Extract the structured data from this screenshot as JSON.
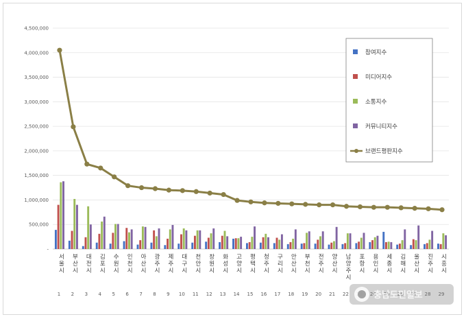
{
  "chart_data": {
    "type": "bar",
    "ylim": [
      0,
      4500000
    ],
    "yticks": [
      "-",
      "500,000",
      "1,000,000",
      "1,500,000",
      "2,000,000",
      "2,500,000",
      "3,000,000",
      "3,500,000",
      "4,000,000",
      "4,500,000"
    ],
    "ytick_values": [
      0,
      500000,
      1000000,
      1500000,
      2000000,
      2500000,
      3000000,
      3500000,
      4000000,
      4500000
    ],
    "categories": [
      "서울시",
      "부산시",
      "대전시",
      "김포시",
      "수원시",
      "인천시",
      "아산시",
      "광주시",
      "제주시",
      "대구시",
      "천안시",
      "창원시",
      "화성시",
      "고양시",
      "평택시",
      "청주시",
      "구리시",
      "안산시",
      "부천시",
      "전주시",
      "양산시",
      "남양주시",
      "포항시",
      "용인시",
      "세종시",
      "김해시",
      "울산시",
      "진주시",
      "시흥시"
    ],
    "ranks": [
      "1",
      "2",
      "3",
      "4",
      "5",
      "6",
      "7",
      "8",
      "9",
      "10",
      "11",
      "12",
      "13",
      "14",
      "15",
      "16",
      "17",
      "18",
      "19",
      "20",
      "21",
      "22",
      "23",
      "24",
      "25",
      "26",
      "27",
      "28",
      "29"
    ],
    "series": [
      {
        "name": "참여지수",
        "color": "#4472c4",
        "type": "bar",
        "values": [
          390000,
          170000,
          60000,
          130000,
          110000,
          160000,
          90000,
          130000,
          80000,
          110000,
          130000,
          150000,
          140000,
          210000,
          120000,
          130000,
          120000,
          100000,
          110000,
          110000,
          90000,
          100000,
          120000,
          140000,
          350000,
          90000,
          80000,
          100000,
          110000
        ]
      },
      {
        "name": "미디어지수",
        "color": "#c0504d",
        "type": "bar",
        "values": [
          900000,
          370000,
          240000,
          310000,
          330000,
          430000,
          180000,
          380000,
          210000,
          300000,
          270000,
          230000,
          270000,
          220000,
          140000,
          240000,
          230000,
          140000,
          120000,
          190000,
          130000,
          120000,
          150000,
          180000,
          140000,
          110000,
          200000,
          120000,
          100000
        ]
      },
      {
        "name": "소통지수",
        "color": "#9bbb59",
        "type": "bar",
        "values": [
          1360000,
          1020000,
          870000,
          560000,
          510000,
          340000,
          460000,
          260000,
          400000,
          420000,
          380000,
          320000,
          370000,
          220000,
          250000,
          310000,
          190000,
          210000,
          330000,
          260000,
          160000,
          320000,
          230000,
          240000,
          150000,
          180000,
          180000,
          190000,
          320000
        ]
      },
      {
        "name": "커뮤니티지수",
        "color": "#8064a2",
        "type": "bar",
        "values": [
          1380000,
          900000,
          500000,
          660000,
          510000,
          400000,
          450000,
          420000,
          490000,
          380000,
          380000,
          420000,
          260000,
          250000,
          460000,
          240000,
          300000,
          400000,
          360000,
          360000,
          450000,
          320000,
          330000,
          270000,
          140000,
          400000,
          480000,
          370000,
          280000
        ]
      },
      {
        "name": "브랜드평판지수",
        "color": "#8a7f46",
        "type": "line",
        "values": [
          4050000,
          2490000,
          1730000,
          1650000,
          1470000,
          1290000,
          1250000,
          1230000,
          1200000,
          1190000,
          1170000,
          1140000,
          1110000,
          990000,
          960000,
          940000,
          930000,
          920000,
          910000,
          900000,
          900000,
          870000,
          860000,
          850000,
          850000,
          840000,
          830000,
          820000,
          800000
        ]
      }
    ],
    "legend_position": "top-right",
    "grid": true
  },
  "watermark": {
    "text": "충남도민일보"
  }
}
